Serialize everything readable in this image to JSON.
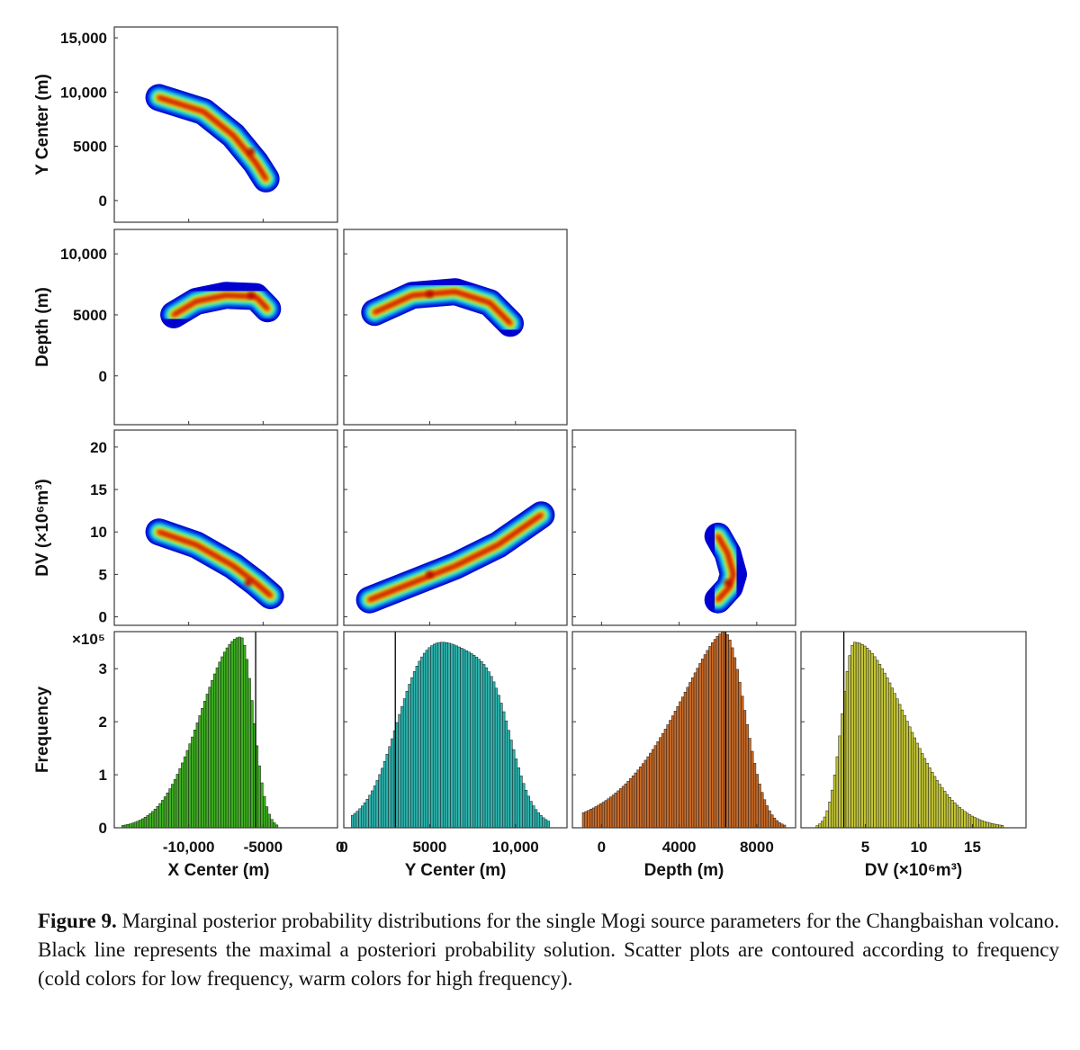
{
  "chart_data": {
    "type": "corner",
    "title": "Marginal posterior probability distributions for the single Mogi source parameters",
    "parameters": [
      "X Center (m)",
      "Y Center (m)",
      "Depth (m)",
      "DV (×10⁶m³)"
    ],
    "params": [
      {
        "key": "x",
        "label": "X Center (m)",
        "range": [
          -15000,
          0
        ],
        "ticks": [
          -10000,
          -5000,
          0
        ],
        "tick_labels": [
          "-10,000",
          "-5000",
          "0"
        ],
        "map": -5500
      },
      {
        "key": "y",
        "label": "Y Center (m)",
        "range": [
          0,
          13000
        ],
        "ticks": [
          0,
          5000,
          10000
        ],
        "tick_labels": [
          "0",
          "5000",
          "10,000"
        ],
        "map": 3000
      },
      {
        "key": "d",
        "label": "Depth (m)",
        "range": [
          -1500,
          10000
        ],
        "ticks": [
          0,
          4000,
          8000
        ],
        "tick_labels": [
          "0",
          "4000",
          "8000"
        ],
        "map": 6400
      },
      {
        "key": "v",
        "label": "DV (×10⁶m³)",
        "range": [
          -1,
          20
        ],
        "ticks": [
          5,
          10,
          15
        ],
        "tick_labels": [
          "5",
          "10",
          "15"
        ],
        "map": 3
      }
    ],
    "y_axes": [
      {
        "row": 0,
        "label": "Y Center (m)",
        "range": [
          -2000,
          16000
        ],
        "ticks": [
          0,
          5000,
          10000,
          15000
        ],
        "tick_labels": [
          "0",
          "5000",
          "10,000",
          "15,000"
        ]
      },
      {
        "row": 1,
        "label": "Depth (m)",
        "range": [
          -4000,
          12000
        ],
        "ticks": [
          0,
          5000,
          10000
        ],
        "tick_labels": [
          "0",
          "5000",
          "10,000"
        ]
      },
      {
        "row": 2,
        "label": "DV (×10⁶m³)",
        "range": [
          -1,
          22
        ],
        "ticks": [
          0,
          5,
          10,
          15,
          20
        ],
        "tick_labels": [
          "0",
          "5",
          "10",
          "15",
          "20"
        ]
      },
      {
        "row": 3,
        "label": "Frequency",
        "range": [
          0,
          3.7
        ],
        "ticks": [
          0,
          1,
          2,
          3
        ],
        "tick_labels": [
          "0",
          "1",
          "2",
          "3"
        ],
        "multiplier": "×10⁵"
      }
    ],
    "scatter_panels": [
      {
        "row": 0,
        "col": 0,
        "x": "X Center (m)",
        "y": "Y Center (m)",
        "mode_x": -5800,
        "mode_y": 4500,
        "ridge": [
          [
            -12000,
            9500
          ],
          [
            -9000,
            8200
          ],
          [
            -7000,
            6000
          ],
          [
            -5500,
            3500
          ],
          [
            -4800,
            2000
          ]
        ]
      },
      {
        "row": 1,
        "col": 0,
        "x": "X Center (m)",
        "y": "Depth (m)",
        "mode_x": -5800,
        "mode_y": 6600,
        "ridge": [
          [
            -11000,
            5000
          ],
          [
            -9500,
            6100
          ],
          [
            -7500,
            6600
          ],
          [
            -5500,
            6500
          ],
          [
            -4700,
            5500
          ]
        ]
      },
      {
        "row": 1,
        "col": 1,
        "x": "Y Center (m)",
        "y": "Depth (m)",
        "mode_x": 5000,
        "mode_y": 6700,
        "ridge": [
          [
            1800,
            5200
          ],
          [
            4000,
            6600
          ],
          [
            6500,
            6900
          ],
          [
            8500,
            6000
          ],
          [
            9700,
            4300
          ]
        ]
      },
      {
        "row": 2,
        "col": 0,
        "x": "X Center (m)",
        "y": "DV (×10⁶m³)",
        "mode_x": -6000,
        "mode_y": 4,
        "ridge": [
          [
            -12000,
            10
          ],
          [
            -9500,
            8.5
          ],
          [
            -7000,
            6
          ],
          [
            -5500,
            4
          ],
          [
            -4500,
            2.5
          ]
        ]
      },
      {
        "row": 2,
        "col": 1,
        "x": "Y Center (m)",
        "y": "DV (×10⁶m³)",
        "mode_x": 5000,
        "mode_y": 5,
        "ridge": [
          [
            1500,
            2
          ],
          [
            4000,
            4
          ],
          [
            6500,
            6
          ],
          [
            9000,
            8.5
          ],
          [
            11500,
            12
          ]
        ]
      },
      {
        "row": 2,
        "col": 2,
        "x": "Depth (m)",
        "y": "DV (×10⁶m³)",
        "mode_x": 6500,
        "mode_y": 4,
        "ridge": [
          [
            6000,
            9.5
          ],
          [
            6500,
            7.5
          ],
          [
            6800,
            5
          ],
          [
            6600,
            3.5
          ],
          [
            6000,
            2
          ]
        ]
      }
    ],
    "histograms": [
      {
        "col": 0,
        "param": "X Center (m)",
        "shape": "skewed-left",
        "peak_x": -6500,
        "peak_freq": 3.6,
        "start": -14500,
        "end": -4000,
        "map_line": -5500,
        "color": "#3fae22"
      },
      {
        "col": 1,
        "param": "Y Center (m)",
        "shape": "plateau",
        "peak_x": 5500,
        "peak_freq": 3.6,
        "start": 500,
        "end": 12000,
        "map_line": 3000,
        "color": "#2fb5b0"
      },
      {
        "col": 2,
        "param": "Depth (m)",
        "shape": "skewed-left-sharp",
        "peak_x": 6300,
        "peak_freq": 3.7,
        "start": -1000,
        "end": 9500,
        "map_line": 6400,
        "color": "#c66a28"
      },
      {
        "col": 3,
        "param": "DV (×10⁶m³)",
        "shape": "skewed-right",
        "peak_x": 4,
        "peak_freq": 3.5,
        "start": 0.5,
        "end": 18,
        "map_line": 3,
        "color": "#c2c437"
      }
    ]
  },
  "caption": {
    "label": "Figure 9.",
    "text": " Marginal posterior probability distributions for the single Mogi source parameters for the Changbaishan volcano. Black line represents the maximal a posteriori probability solution. Scatter plots are contoured according to frequency (cold colors for low frequency, warm colors for high frequency)."
  }
}
